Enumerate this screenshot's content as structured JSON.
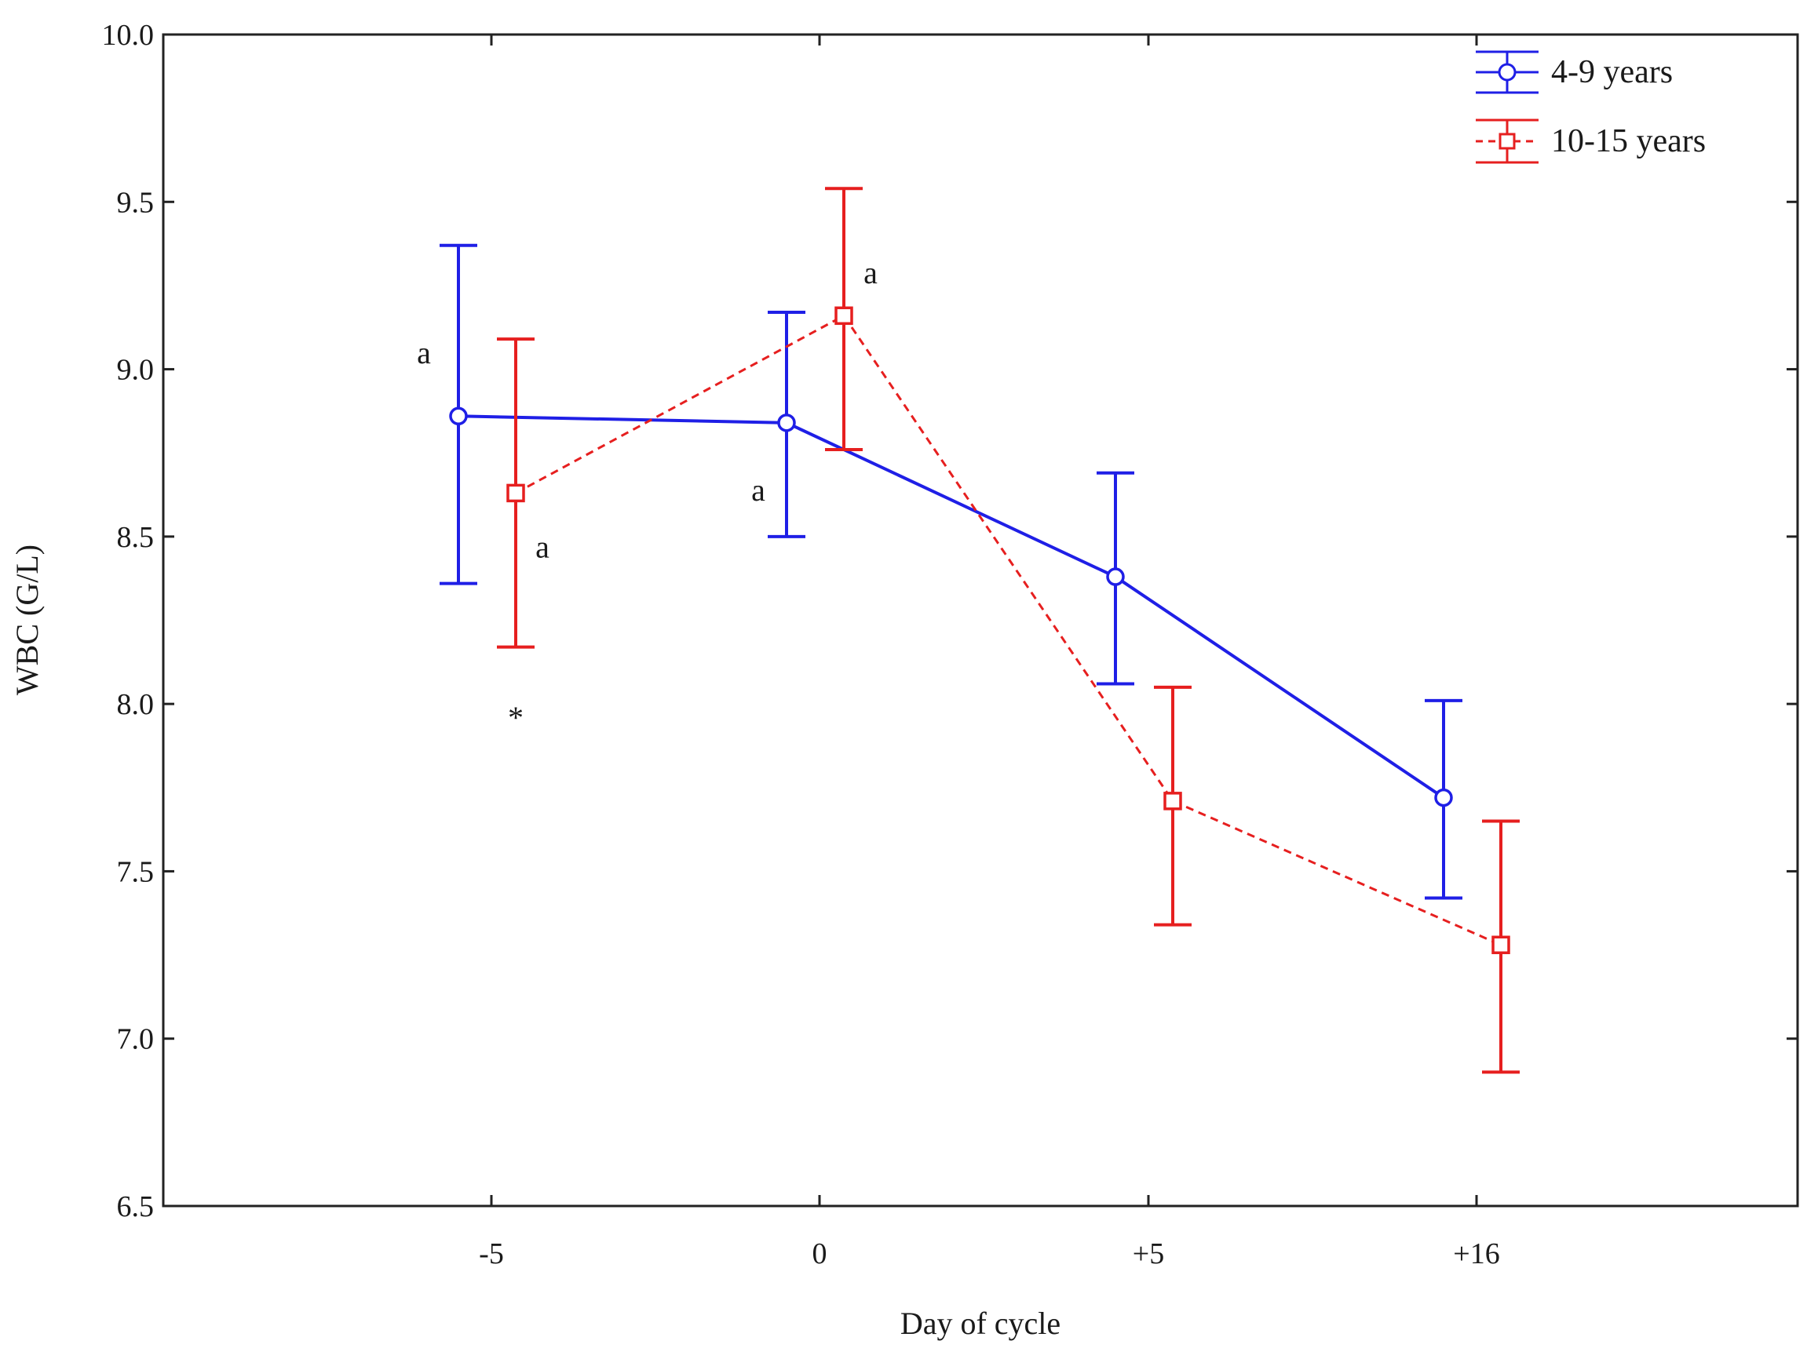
{
  "chart_data": {
    "type": "line",
    "title": "",
    "xlabel": "Day of cycle",
    "ylabel": "WBC (G/L)",
    "categories": [
      "-5",
      "0",
      "+5",
      "+16"
    ],
    "ylim": [
      6.5,
      10.0
    ],
    "yticks": [
      "6.5",
      "7.0",
      "7.5",
      "8.0",
      "8.5",
      "9.0",
      "9.5",
      "10.0"
    ],
    "grid": false,
    "legend_position": "top-right",
    "series": [
      {
        "name": "4-9 years",
        "color": "#1f1fe6",
        "marker": "circle",
        "line_style": "solid",
        "values": [
          8.86,
          8.84,
          8.38,
          7.72
        ],
        "lower": [
          8.36,
          8.5,
          8.06,
          7.42
        ],
        "upper": [
          9.37,
          9.17,
          8.69,
          8.01
        ]
      },
      {
        "name": "10-15 years",
        "color": "#e61f1f",
        "marker": "square",
        "line_style": "dashed",
        "values": [
          8.63,
          9.16,
          7.71,
          7.28
        ],
        "lower": [
          8.17,
          8.76,
          7.34,
          6.9
        ],
        "upper": [
          9.09,
          9.54,
          8.05,
          7.65
        ]
      }
    ],
    "annotations": [
      {
        "text": "a",
        "series": 0,
        "category": "-5",
        "value": 9.05
      },
      {
        "text": "a",
        "series": 1,
        "category": "-5",
        "value": 8.47
      },
      {
        "text": "*",
        "series": 1,
        "category": "-5",
        "value": 7.96
      },
      {
        "text": "a",
        "series": 0,
        "category": "0",
        "value": 8.64
      },
      {
        "text": "a",
        "series": 1,
        "category": "0",
        "value": 9.29
      }
    ]
  }
}
